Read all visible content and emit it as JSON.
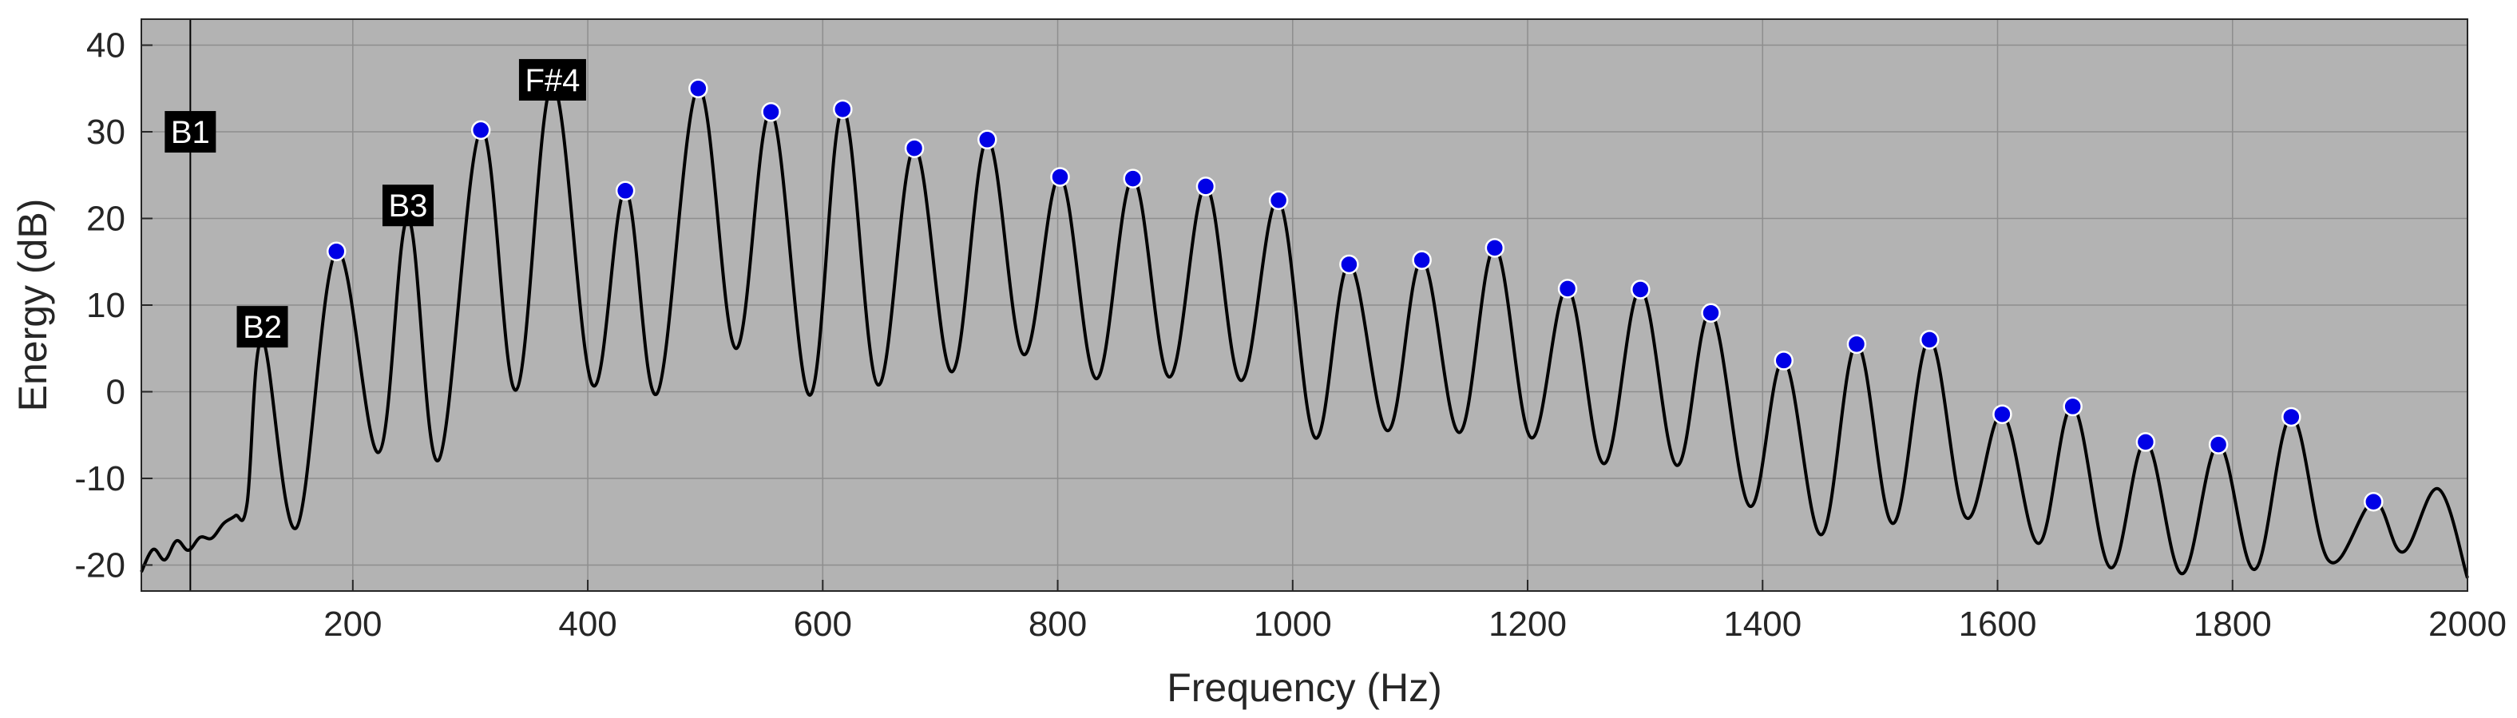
{
  "chart_data": {
    "type": "line",
    "xlabel": "Frequency (Hz)",
    "ylabel": "Energy (dB)",
    "xlim": [
      20,
      2000
    ],
    "ylim": [
      -23,
      43
    ],
    "xticks": [
      200,
      400,
      600,
      800,
      1000,
      1200,
      1400,
      1600,
      1800,
      2000
    ],
    "yticks": [
      -20,
      -10,
      0,
      10,
      20,
      30,
      40
    ],
    "grid": true,
    "colors": {
      "plot_background": "#b3b3b3",
      "curve": "#000000",
      "peak_marker": "#0000e6",
      "grid": "#8e8e8e",
      "annotation_bg": "#000000",
      "annotation_text": "#ffffff"
    },
    "reference_line": {
      "x": 61.7
    },
    "peaks": [
      {
        "x": 186,
        "y": 16.2
      },
      {
        "x": 309,
        "y": 30.2
      },
      {
        "x": 432,
        "y": 23.2
      },
      {
        "x": 494,
        "y": 35.0
      },
      {
        "x": 556,
        "y": 32.3
      },
      {
        "x": 617,
        "y": 32.6
      },
      {
        "x": 678,
        "y": 28.1
      },
      {
        "x": 740,
        "y": 29.1
      },
      {
        "x": 802,
        "y": 24.8
      },
      {
        "x": 864,
        "y": 24.6
      },
      {
        "x": 926,
        "y": 23.7
      },
      {
        "x": 988,
        "y": 22.1
      },
      {
        "x": 1048,
        "y": 14.7
      },
      {
        "x": 1110,
        "y": 15.2
      },
      {
        "x": 1172,
        "y": 16.6
      },
      {
        "x": 1234,
        "y": 11.9
      },
      {
        "x": 1296,
        "y": 11.8
      },
      {
        "x": 1356,
        "y": 9.1
      },
      {
        "x": 1418,
        "y": 3.6
      },
      {
        "x": 1480,
        "y": 5.5
      },
      {
        "x": 1542,
        "y": 6.0
      },
      {
        "x": 1604,
        "y": -2.6
      },
      {
        "x": 1664,
        "y": -1.7
      },
      {
        "x": 1726,
        "y": -5.8
      },
      {
        "x": 1788,
        "y": -6.1
      },
      {
        "x": 1850,
        "y": -2.9
      },
      {
        "x": 1920,
        "y": -12.7
      }
    ],
    "unmarked_peaks": [
      {
        "x": 123,
        "y": 6.0
      },
      {
        "x": 247,
        "y": 20.0
      },
      {
        "x": 370,
        "y": 35.5
      },
      {
        "x": 1975,
        "y": -11.2
      }
    ],
    "troughs": [
      {
        "x": 152,
        "y": -15.7
      },
      {
        "x": 222,
        "y": -7.0
      },
      {
        "x": 273,
        "y": -7.9
      },
      {
        "x": 339,
        "y": 0.2
      },
      {
        "x": 404,
        "y": 0.8
      },
      {
        "x": 459,
        "y": -0.2
      },
      {
        "x": 526,
        "y": 5.0
      },
      {
        "x": 589,
        "y": -0.4
      },
      {
        "x": 647,
        "y": 0.8
      },
      {
        "x": 710,
        "y": 2.3
      },
      {
        "x": 771,
        "y": 4.3
      },
      {
        "x": 833,
        "y": 1.5
      },
      {
        "x": 895,
        "y": 1.7
      },
      {
        "x": 956,
        "y": 1.3
      },
      {
        "x": 1019,
        "y": -5.3
      },
      {
        "x": 1081,
        "y": -4.5
      },
      {
        "x": 1142,
        "y": -4.7
      },
      {
        "x": 1203,
        "y": -5.3
      },
      {
        "x": 1265,
        "y": -8.3
      },
      {
        "x": 1327,
        "y": -8.5
      },
      {
        "x": 1389,
        "y": -13.2
      },
      {
        "x": 1450,
        "y": -16.5
      },
      {
        "x": 1511,
        "y": -15.2
      },
      {
        "x": 1573,
        "y": -14.5
      },
      {
        "x": 1635,
        "y": -17.5
      },
      {
        "x": 1696,
        "y": -20.3
      },
      {
        "x": 1757,
        "y": -21.0
      },
      {
        "x": 1819,
        "y": -20.5
      },
      {
        "x": 1882,
        "y": -19.5
      },
      {
        "x": 1945,
        "y": -18.5
      },
      {
        "x": 2000,
        "y": -21.5
      }
    ],
    "annotations": [
      {
        "text": "B1",
        "x": 61.7,
        "y": 30.0
      },
      {
        "text": "B2",
        "x": 123,
        "y": 7.5
      },
      {
        "text": "B3",
        "x": 247,
        "y": 21.5
      },
      {
        "text": "F#4",
        "x": 370,
        "y": 36.0
      }
    ]
  }
}
